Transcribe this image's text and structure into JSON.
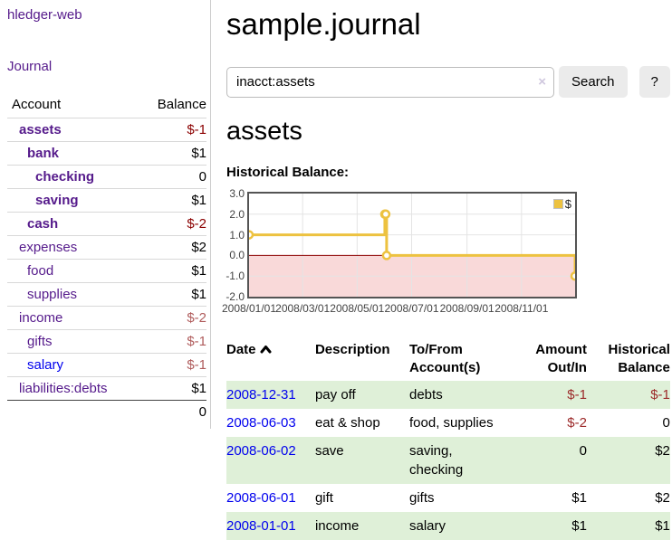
{
  "colors": {
    "link_purple": "#551A8B",
    "link_blue": "#0000EE",
    "negative_bold": "#8b0000",
    "negative_soft": "#b05c5c",
    "row_green": "#dff0d8",
    "series_gold": "#edc240",
    "zero_line": "#8b0000",
    "negative_region": "#f9d9d9"
  },
  "sidebar": {
    "brand": "hledger-web",
    "journal_link": "Journal",
    "accounts_table": {
      "headers": {
        "account": "Account",
        "balance": "Balance"
      },
      "rows": [
        {
          "name": "assets",
          "indent": 1,
          "bold": true,
          "balance": "$-1",
          "negative": true,
          "unvisited": false
        },
        {
          "name": "bank",
          "indent": 2,
          "bold": true,
          "balance": "$1",
          "negative": false,
          "unvisited": false
        },
        {
          "name": "checking",
          "indent": 3,
          "bold": true,
          "balance": "0",
          "negative": false,
          "unvisited": false
        },
        {
          "name": "saving",
          "indent": 3,
          "bold": true,
          "balance": "$1",
          "negative": false,
          "unvisited": false
        },
        {
          "name": "cash",
          "indent": 2,
          "bold": true,
          "balance": "$-2",
          "negative": true,
          "unvisited": false
        },
        {
          "name": "expenses",
          "indent": 1,
          "bold": false,
          "balance": "$2",
          "negative": false,
          "unvisited": false
        },
        {
          "name": "food",
          "indent": 2,
          "bold": false,
          "balance": "$1",
          "negative": false,
          "unvisited": false
        },
        {
          "name": "supplies",
          "indent": 2,
          "bold": false,
          "balance": "$1",
          "negative": false,
          "unvisited": false
        },
        {
          "name": "income",
          "indent": 1,
          "bold": false,
          "balance": "$-2",
          "negative": true,
          "unvisited": false
        },
        {
          "name": "gifts",
          "indent": 2,
          "bold": false,
          "balance": "$-1",
          "negative": true,
          "unvisited": false
        },
        {
          "name": "salary",
          "indent": 2,
          "bold": false,
          "balance": "$-1",
          "negative": true,
          "unvisited": true
        },
        {
          "name": "liabilities:debts",
          "indent": 1,
          "bold": false,
          "balance": "$1",
          "negative": false,
          "unvisited": false
        }
      ],
      "total": "0"
    }
  },
  "main": {
    "title": "sample.journal",
    "search": {
      "value": "inacct:assets",
      "clear_icon": "×",
      "button_label": "Search",
      "help_label": "?"
    },
    "account_heading": "assets",
    "chart_label": "Historical Balance:"
  },
  "chart_data": {
    "type": "line",
    "step": true,
    "title": "Historical Balance:",
    "series": [
      {
        "name": "$",
        "color": "#edc240",
        "points": [
          [
            "2008-01-01",
            1
          ],
          [
            "2008-06-01",
            2
          ],
          [
            "2008-06-02",
            2
          ],
          [
            "2008-06-03",
            0
          ],
          [
            "2008-12-31",
            -1
          ]
        ]
      }
    ],
    "xlim": [
      "2008-01-01",
      "2008-12-31"
    ],
    "ylim": [
      -2,
      3
    ],
    "x_ticks": [
      "2008-01-01",
      "2008-03-01",
      "2008-05-01",
      "2008-07-01",
      "2008-09-01",
      "2008-11-01"
    ],
    "x_tick_labels": [
      "2008/01/01",
      "2008/03/01",
      "2008/05/01",
      "2008/07/01",
      "2008/09/01",
      "2008/11/01"
    ],
    "y_ticks": [
      3.0,
      2.0,
      1.0,
      0.0,
      -1.0,
      -2.0
    ],
    "legend_position": "top-right",
    "grid": true,
    "negative_region_color": "#f9d9d9",
    "zero_line_color": "#8b0000"
  },
  "register_table": {
    "headers": {
      "date": "Date",
      "sort_icon": "chevron-up",
      "description": "Description",
      "accounts": "To/From Account(s)",
      "amount": "Amount Out/In",
      "balance": "Historical Balance"
    },
    "rows": [
      {
        "date": "2008-12-31",
        "description": "pay off",
        "accounts": "debts",
        "amount": "$-1",
        "amount_negative": true,
        "balance": "$-1",
        "balance_negative": true
      },
      {
        "date": "2008-06-03",
        "description": "eat & shop",
        "accounts": "food, supplies",
        "amount": "$-2",
        "amount_negative": true,
        "balance": "0",
        "balance_negative": false
      },
      {
        "date": "2008-06-02",
        "description": "save",
        "accounts": "saving, checking",
        "amount": "0",
        "amount_negative": false,
        "balance": "$2",
        "balance_negative": false
      },
      {
        "date": "2008-06-01",
        "description": "gift",
        "accounts": "gifts",
        "amount": "$1",
        "amount_negative": false,
        "balance": "$2",
        "balance_negative": false
      },
      {
        "date": "2008-01-01",
        "description": "income",
        "accounts": "salary",
        "amount": "$1",
        "amount_negative": false,
        "balance": "$1",
        "balance_negative": false
      }
    ]
  }
}
